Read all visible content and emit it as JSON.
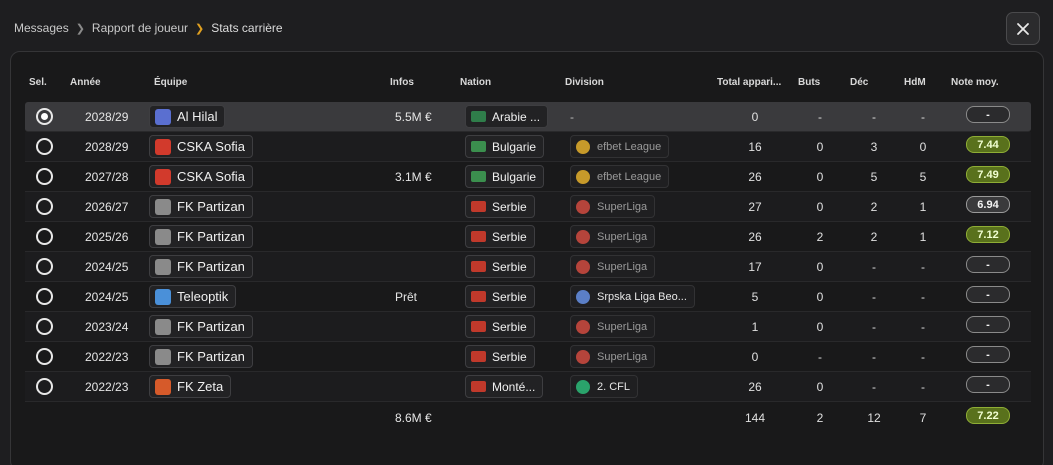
{
  "breadcrumb": [
    "Messages",
    "Rapport de joueur",
    "Stats carrière"
  ],
  "columns": {
    "sel": "Sel.",
    "annee": "Année",
    "equipe": "Équipe",
    "infos": "Infos",
    "nation": "Nation",
    "division": "Division",
    "total": "Total appari...",
    "buts": "Buts",
    "dec": "Déc",
    "hdm": "HdM",
    "note": "Note moy."
  },
  "rows": [
    {
      "selected": true,
      "year": "2028/29",
      "team": "Al Hilal",
      "crest_color": "#5a6fd0",
      "infos": "5.5M €",
      "nation": "Arabie ...",
      "flag_color": "#2f7d4a",
      "division": "-",
      "division_icon": "",
      "apps": "0",
      "buts": "-",
      "dec": "-",
      "hdm": "-",
      "note": "-",
      "note_style": "none"
    },
    {
      "selected": false,
      "year": "2028/29",
      "team": "CSKA Sofia",
      "crest_color": "#d23a2c",
      "infos": "",
      "nation": "Bulgarie",
      "flag_color": "#3b8f4e",
      "division": "efbet League",
      "division_icon": "#c79a2a",
      "apps": "16",
      "buts": "0",
      "dec": "3",
      "hdm": "0",
      "note": "7.44",
      "note_style": "good"
    },
    {
      "selected": false,
      "year": "2027/28",
      "team": "CSKA Sofia",
      "crest_color": "#d23a2c",
      "infos": "3.1M €",
      "nation": "Bulgarie",
      "flag_color": "#3b8f4e",
      "division": "efbet League",
      "division_icon": "#c79a2a",
      "apps": "26",
      "buts": "0",
      "dec": "5",
      "hdm": "5",
      "note": "7.49",
      "note_style": "good"
    },
    {
      "selected": false,
      "year": "2026/27",
      "team": "FK Partizan",
      "crest_color": "#8a8a8a",
      "infos": "",
      "nation": "Serbie",
      "flag_color": "#c0392b",
      "division": "SuperLiga",
      "division_icon": "#b5443b",
      "apps": "27",
      "buts": "0",
      "dec": "2",
      "hdm": "1",
      "note": "6.94",
      "note_style": "mid"
    },
    {
      "selected": false,
      "year": "2025/26",
      "team": "FK Partizan",
      "crest_color": "#8a8a8a",
      "infos": "",
      "nation": "Serbie",
      "flag_color": "#c0392b",
      "division": "SuperLiga",
      "division_icon": "#b5443b",
      "apps": "26",
      "buts": "2",
      "dec": "2",
      "hdm": "1",
      "note": "7.12",
      "note_style": "good"
    },
    {
      "selected": false,
      "year": "2024/25",
      "team": "FK Partizan",
      "crest_color": "#8a8a8a",
      "infos": "",
      "nation": "Serbie",
      "flag_color": "#c0392b",
      "division": "SuperLiga",
      "division_icon": "#b5443b",
      "apps": "17",
      "buts": "0",
      "dec": "-",
      "hdm": "-",
      "note": "-",
      "note_style": "none"
    },
    {
      "selected": false,
      "year": "2024/25",
      "team": "Teleoptik",
      "crest_color": "#4a90d9",
      "infos": "Prêt",
      "nation": "Serbie",
      "flag_color": "#c0392b",
      "division": "Srpska Liga Beo...",
      "division_icon": "#5b7fc7",
      "division_strong": true,
      "apps": "5",
      "buts": "0",
      "dec": "-",
      "hdm": "-",
      "note": "-",
      "note_style": "none"
    },
    {
      "selected": false,
      "year": "2023/24",
      "team": "FK Partizan",
      "crest_color": "#8a8a8a",
      "infos": "",
      "nation": "Serbie",
      "flag_color": "#c0392b",
      "division": "SuperLiga",
      "division_icon": "#b5443b",
      "apps": "1",
      "buts": "0",
      "dec": "-",
      "hdm": "-",
      "note": "-",
      "note_style": "none"
    },
    {
      "selected": false,
      "year": "2022/23",
      "team": "FK Partizan",
      "crest_color": "#8a8a8a",
      "infos": "",
      "nation": "Serbie",
      "flag_color": "#c0392b",
      "division": "SuperLiga",
      "division_icon": "#b5443b",
      "apps": "0",
      "buts": "-",
      "dec": "-",
      "hdm": "-",
      "note": "-",
      "note_style": "none"
    },
    {
      "selected": false,
      "year": "2022/23",
      "team": "FK Zeta",
      "crest_color": "#d65a2a",
      "infos": "",
      "nation": "Monté...",
      "flag_color": "#c0392b",
      "division": "2. CFL",
      "division_icon": "#2aa36b",
      "division_strong": true,
      "apps": "26",
      "buts": "0",
      "dec": "-",
      "hdm": "-",
      "note": "-",
      "note_style": "none"
    }
  ],
  "totals": {
    "infos": "8.6M €",
    "apps": "144",
    "buts": "2",
    "dec": "12",
    "hdm": "7",
    "note": "7.22"
  }
}
